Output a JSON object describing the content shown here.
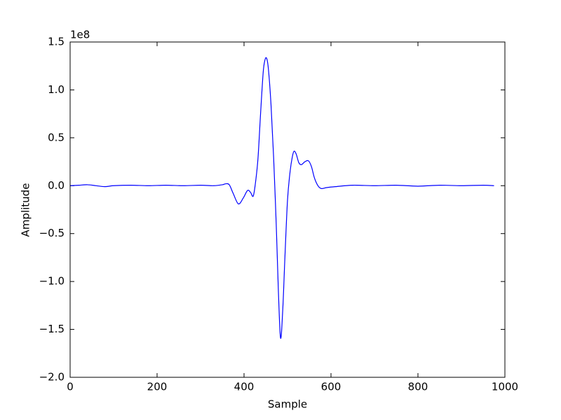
{
  "chart_data": {
    "type": "line",
    "x_label": "Sample",
    "y_label": "Amplitude",
    "y_offset_label": "1e8",
    "xlim": [
      0,
      1000
    ],
    "xticks": [
      0,
      200,
      400,
      600,
      800,
      1000
    ],
    "ylim": [
      -2.0,
      1.5
    ],
    "yticks": [
      {
        "value": -2.0,
        "label": "−2.0"
      },
      {
        "value": -1.5,
        "label": "−1.5"
      },
      {
        "value": -1.0,
        "label": "−1.0"
      },
      {
        "value": -0.5,
        "label": "−0.5"
      },
      {
        "value": 0.0,
        "label": "0.0"
      },
      0.5,
      {
        "value": 1.0,
        "label": "1.0"
      },
      1.5
    ],
    "grid": false,
    "x": [
      0,
      20,
      40,
      60,
      80,
      100,
      140,
      180,
      220,
      260,
      300,
      330,
      350,
      358,
      366,
      375,
      387,
      398,
      408,
      415,
      421,
      426,
      432,
      438,
      444,
      448,
      452,
      456,
      462,
      468,
      474,
      479,
      484,
      489,
      494,
      500,
      506,
      511,
      515,
      520,
      526,
      532,
      540,
      548,
      555,
      562,
      570,
      578,
      590,
      610,
      650,
      700,
      750,
      800,
      850,
      900,
      950,
      975
    ],
    "series": [
      {
        "color": "#0000ff",
        "values": [
          0,
          0.005,
          0.01,
          0,
          -0.01,
          0,
          0.005,
          0,
          0.005,
          0,
          0.005,
          0,
          0.01,
          0.02,
          0.01,
          -0.08,
          -0.19,
          -0.13,
          -0.05,
          -0.07,
          -0.11,
          0.02,
          0.28,
          0.75,
          1.18,
          1.31,
          1.33,
          1.22,
          0.85,
          0.3,
          -0.4,
          -1.1,
          -1.59,
          -1.3,
          -0.75,
          -0.15,
          0.15,
          0.3,
          0.36,
          0.33,
          0.24,
          0.22,
          0.25,
          0.26,
          0.2,
          0.08,
          0,
          -0.03,
          -0.02,
          -0.01,
          0.005,
          0,
          0.005,
          -0.005,
          0.005,
          0,
          0.005,
          0
        ]
      }
    ]
  }
}
